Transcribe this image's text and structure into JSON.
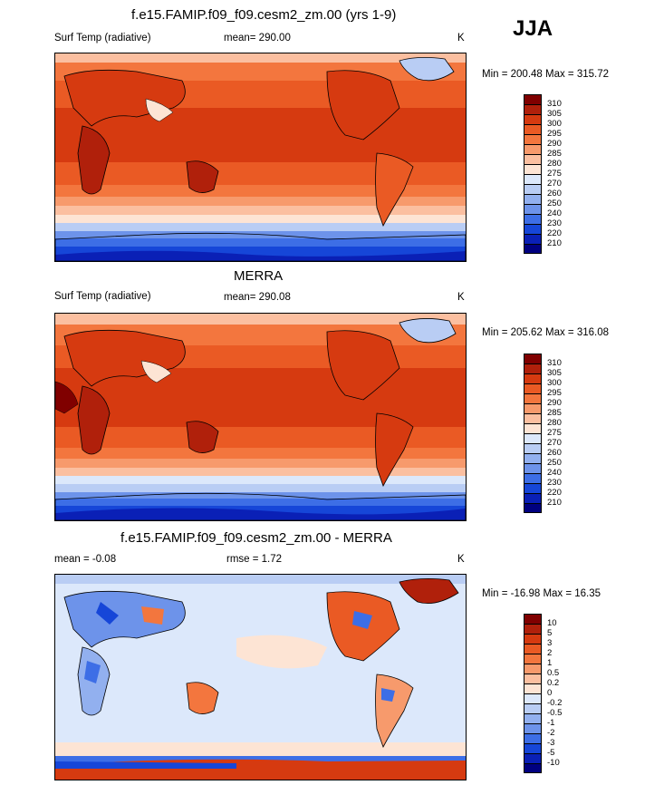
{
  "season": "JJA",
  "panels": [
    {
      "title": "f.e15.FAMIP.f09_f09.cesm2_zm.00 (yrs 1-9)",
      "left_label": "Surf Temp (radiative)",
      "center_label": "mean= 290.00",
      "unit": "K",
      "minmax": "Min = 200.48 Max = 315.72",
      "colorbar_labels": [
        "310",
        "305",
        "300",
        "295",
        "290",
        "285",
        "280",
        "275",
        "270",
        "260",
        "250",
        "240",
        "230",
        "220",
        "210"
      ]
    },
    {
      "title": "MERRA",
      "left_label": "Surf Temp (radiative)",
      "center_label": "mean= 290.08",
      "unit": "K",
      "minmax": "Min = 205.62 Max = 316.08",
      "colorbar_labels": [
        "310",
        "305",
        "300",
        "295",
        "290",
        "285",
        "280",
        "275",
        "270",
        "260",
        "250",
        "240",
        "230",
        "220",
        "210"
      ]
    },
    {
      "title": "f.e15.FAMIP.f09_f09.cesm2_zm.00 - MERRA",
      "left_label": "mean =  -0.08",
      "center_label": "rmse =   1.72",
      "unit": "K",
      "minmax": "Min = -16.98 Max =  16.35",
      "colorbar_labels": [
        "10",
        "5",
        "3",
        "2",
        "1",
        "0.5",
        "0.2",
        "0",
        "-0.2",
        "-0.5",
        "-1",
        "-2",
        "-3",
        "-5",
        "-10"
      ]
    }
  ],
  "colors": {
    "temp_scale": [
      "#800000",
      "#b0200b",
      "#d63a10",
      "#ea5a24",
      "#f3763e",
      "#f79a6c",
      "#fbbfa0",
      "#fde4d4",
      "#dce8fb",
      "#b9cdf4",
      "#92b0ef",
      "#6d93ea",
      "#3d6ee6",
      "#1646d8",
      "#0a20b6",
      "#000080"
    ],
    "diff_scale": [
      "#800000",
      "#b0200b",
      "#d63a10",
      "#ea5a24",
      "#f3763e",
      "#f79a6c",
      "#fbbfa0",
      "#fde4d4",
      "#dce8fb",
      "#b9cdf4",
      "#92b0ef",
      "#6d93ea",
      "#3d6ee6",
      "#1646d8",
      "#0a20b6",
      "#000080"
    ]
  }
}
